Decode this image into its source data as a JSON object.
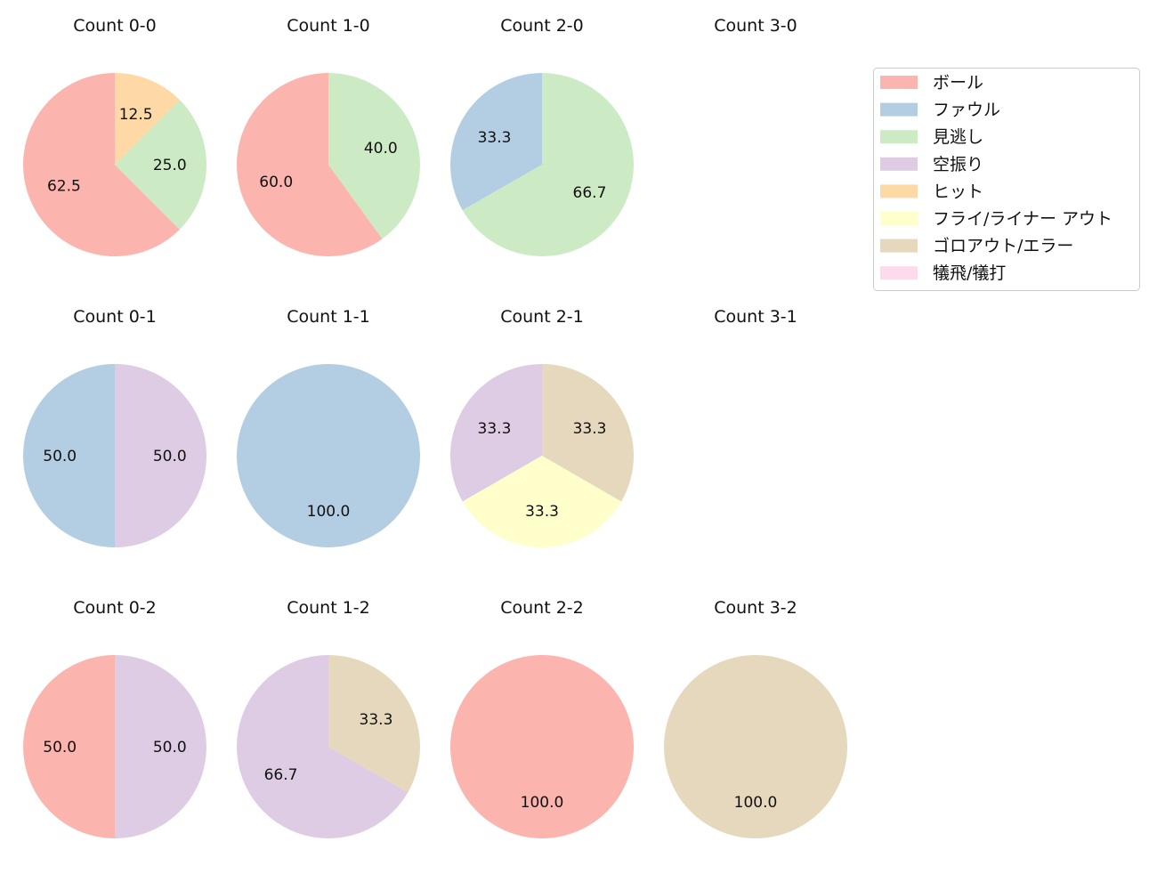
{
  "chart_data": {
    "type": "pie",
    "legend": {
      "placement": "top-right",
      "entries": [
        {
          "name": "ボール",
          "color": "#fbb4ae"
        },
        {
          "name": "ファウル",
          "color": "#b3cde3"
        },
        {
          "name": "見逃し",
          "color": "#ccebc5"
        },
        {
          "name": "空振り",
          "color": "#decbe4"
        },
        {
          "name": "ヒット",
          "color": "#fed9a6"
        },
        {
          "name": "フライ/ライナー アウト",
          "color": "#ffffcc"
        },
        {
          "name": "ゴロアウト/エラー",
          "color": "#e5d8bd"
        },
        {
          "name": "犠飛/犠打",
          "color": "#fddaec"
        }
      ]
    },
    "charts": [
      {
        "title": "Count 0-0",
        "slices": [
          {
            "category": "ボール",
            "value": 62.5,
            "label": "62.5"
          },
          {
            "category": "見逃し",
            "value": 25.0,
            "label": "25.0"
          },
          {
            "category": "ヒット",
            "value": 12.5,
            "label": "12.5"
          }
        ]
      },
      {
        "title": "Count 1-0",
        "slices": [
          {
            "category": "ボール",
            "value": 60.0,
            "label": "60.0"
          },
          {
            "category": "見逃し",
            "value": 40.0,
            "label": "40.0"
          }
        ]
      },
      {
        "title": "Count 2-0",
        "slices": [
          {
            "category": "ファウル",
            "value": 33.3,
            "label": "33.3"
          },
          {
            "category": "見逃し",
            "value": 66.7,
            "label": "66.7"
          }
        ]
      },
      {
        "title": "Count 3-0",
        "slices": []
      },
      {
        "title": "Count 0-1",
        "slices": [
          {
            "category": "ファウル",
            "value": 50.0,
            "label": "50.0"
          },
          {
            "category": "空振り",
            "value": 50.0,
            "label": "50.0"
          }
        ]
      },
      {
        "title": "Count 1-1",
        "slices": [
          {
            "category": "ファウル",
            "value": 100.0,
            "label": "100.0"
          }
        ]
      },
      {
        "title": "Count 2-1",
        "slices": [
          {
            "category": "空振り",
            "value": 33.3,
            "label": "33.3"
          },
          {
            "category": "フライ/ライナー アウト",
            "value": 33.3,
            "label": "33.3"
          },
          {
            "category": "ゴロアウト/エラー",
            "value": 33.3,
            "label": "33.3"
          }
        ]
      },
      {
        "title": "Count 3-1",
        "slices": []
      },
      {
        "title": "Count 0-2",
        "slices": [
          {
            "category": "ボール",
            "value": 50.0,
            "label": "50.0"
          },
          {
            "category": "空振り",
            "value": 50.0,
            "label": "50.0"
          }
        ]
      },
      {
        "title": "Count 1-2",
        "slices": [
          {
            "category": "空振り",
            "value": 66.7,
            "label": "66.7"
          },
          {
            "category": "ゴロアウト/エラー",
            "value": 33.3,
            "label": "33.3"
          }
        ]
      },
      {
        "title": "Count 2-2",
        "slices": [
          {
            "category": "ボール",
            "value": 100.0,
            "label": "100.0"
          }
        ]
      },
      {
        "title": "Count 3-2",
        "slices": [
          {
            "category": "ゴロアウト/エラー",
            "value": 100.0,
            "label": "100.0"
          }
        ]
      }
    ]
  }
}
